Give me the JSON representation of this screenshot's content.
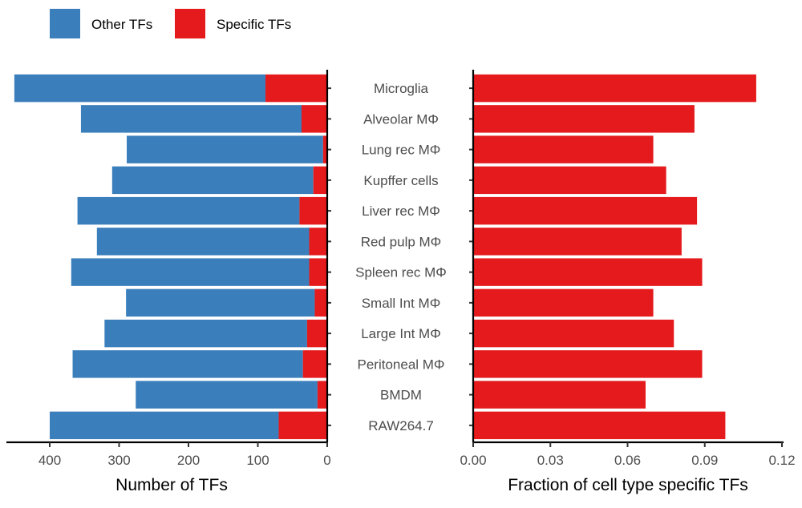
{
  "legend": {
    "entries": [
      {
        "label": "Other TFs",
        "color": "#3a7ebb"
      },
      {
        "label": "Specific TFs",
        "color": "#e41a1c"
      }
    ]
  },
  "chart_data": [
    {
      "type": "bar",
      "orientation": "horizontal",
      "stacked": true,
      "direction": "reversed",
      "title": "",
      "xlabel": "Number of TFs",
      "ylabel": "",
      "xlim": [
        0,
        450
      ],
      "xticks": [
        0,
        100,
        200,
        300,
        400
      ],
      "xtick_labels": [
        "0",
        "100",
        "200",
        "300",
        "400"
      ],
      "categories": [
        "Microglia",
        "Alveolar MΦ",
        "Lung rec MΦ",
        "Kupffer cells",
        "Liver rec MΦ",
        "Red pulp MΦ",
        "Spleen rec MΦ",
        "Small Int MΦ",
        "Large Int MΦ",
        "Peritoneal MΦ",
        "BMDM",
        "RAW264.7"
      ],
      "series": [
        {
          "name": "Specific TFs",
          "color": "#e41a1c",
          "values": [
            89,
            37,
            6,
            20,
            40,
            26,
            26,
            18,
            29,
            35,
            14,
            70
          ]
        },
        {
          "name": "Other TFs",
          "color": "#3a7ebb",
          "values": [
            362,
            318,
            283,
            290,
            320,
            306,
            343,
            272,
            292,
            332,
            262,
            330
          ]
        }
      ]
    },
    {
      "type": "bar",
      "orientation": "horizontal",
      "title": "",
      "xlabel": "Fraction of cell type specific TFs",
      "ylabel": "",
      "xlim": [
        0,
        0.12
      ],
      "xticks": [
        0,
        0.03,
        0.06,
        0.09,
        0.12
      ],
      "xtick_labels": [
        "0.00",
        "0.03",
        "0.06",
        "0.09",
        "0.12"
      ],
      "categories": [
        "Microglia",
        "Alveolar MΦ",
        "Lung rec MΦ",
        "Kupffer cells",
        "Liver rec MΦ",
        "Red pulp MΦ",
        "Spleen rec MΦ",
        "Small Int MΦ",
        "Large Int MΦ",
        "Peritoneal MΦ",
        "BMDM",
        "RAW264.7"
      ],
      "series": [
        {
          "name": "Specific TFs",
          "color": "#e41a1c",
          "values": [
            0.11,
            0.086,
            0.07,
            0.075,
            0.087,
            0.081,
            0.089,
            0.07,
            0.078,
            0.089,
            0.067,
            0.098
          ]
        }
      ]
    }
  ]
}
